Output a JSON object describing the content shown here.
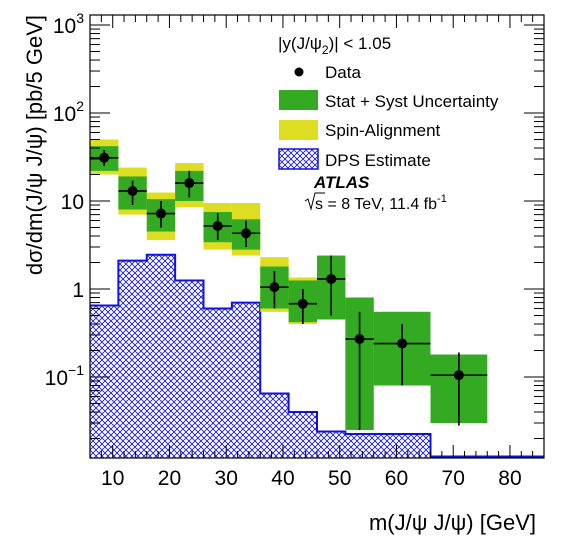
{
  "chart_data": {
    "type": "scatter",
    "xlabel": "m(J/ψ J/ψ) [GeV]",
    "ylabel": "dσ/dm(J/ψ J/ψ) [pb/5 GeV]",
    "xlim": [
      6,
      86
    ],
    "ylim": [
      0.012,
      1300
    ],
    "yscale": "log",
    "x_ticks": [
      10,
      20,
      30,
      40,
      50,
      60,
      70,
      80
    ],
    "y_ticks": [
      {
        "value": 0.1,
        "mantissa": "10",
        "exp": "−1"
      },
      {
        "value": 1,
        "mantissa": "1",
        "exp": ""
      },
      {
        "value": 10,
        "mantissa": "10",
        "exp": ""
      },
      {
        "value": 100,
        "mantissa": "10",
        "exp": "2"
      },
      {
        "value": 1000,
        "mantissa": "10",
        "exp": "3"
      }
    ],
    "cut_label": "|y(J/ψ",
    "cut_sub": "2",
    "cut_value": ")| < 1.05",
    "experiment": "ATLAS",
    "energy_label": "s = 8 TeV, 11.4 fb",
    "energy_sup": "-1",
    "legend": {
      "placement": "top-right",
      "data": "Data",
      "stat_syst": "Stat + Syst Uncertainty",
      "spin": "Spin-Alignment",
      "dps": "DPS Estimate"
    },
    "colors": {
      "stat_syst": "#33aa22",
      "spin": "#dddd22",
      "dps": "#1111dd",
      "data": "#000000"
    },
    "series": [
      {
        "name": "Data",
        "points": [
          {
            "x": 8.5,
            "y": 31,
            "xerr": 2.5,
            "ylo": 25,
            "yhi": 38,
            "stat_lo": 22,
            "stat_hi": 42,
            "spin_lo": 20,
            "spin_hi": 50
          },
          {
            "x": 13.5,
            "y": 13,
            "xerr": 2.5,
            "ylo": 9,
            "yhi": 17,
            "stat_lo": 8,
            "stat_hi": 19,
            "spin_lo": 7,
            "spin_hi": 24
          },
          {
            "x": 18.5,
            "y": 7.2,
            "xerr": 2.5,
            "ylo": 5,
            "yhi": 10,
            "stat_lo": 4.5,
            "stat_hi": 10.5,
            "spin_lo": 3.6,
            "spin_hi": 12.5
          },
          {
            "x": 23.5,
            "y": 16,
            "xerr": 2.5,
            "ylo": 11,
            "yhi": 22,
            "stat_lo": 10,
            "stat_hi": 22,
            "spin_lo": 8.5,
            "spin_hi": 27
          },
          {
            "x": 28.5,
            "y": 5.2,
            "xerr": 2.5,
            "ylo": 3.6,
            "yhi": 7.3,
            "stat_lo": 3.4,
            "stat_hi": 7.5,
            "spin_lo": 2.8,
            "spin_hi": 9.5
          },
          {
            "x": 33.5,
            "y": 4.3,
            "xerr": 2.5,
            "ylo": 3.0,
            "yhi": 6.0,
            "stat_lo": 2.8,
            "stat_hi": 6.2,
            "spin_lo": 2.4,
            "spin_hi": 9.5
          },
          {
            "x": 38.5,
            "y": 1.05,
            "xerr": 2.5,
            "ylo": 0.6,
            "yhi": 1.6,
            "stat_lo": 0.6,
            "stat_hi": 1.8,
            "spin_lo": 0.55,
            "spin_hi": 2.3
          },
          {
            "x": 43.5,
            "y": 0.68,
            "xerr": 2.5,
            "ylo": 0.4,
            "yhi": 1.0,
            "stat_lo": 0.42,
            "stat_hi": 1.25,
            "spin_lo": 0.4,
            "spin_hi": 1.35
          },
          {
            "x": 48.5,
            "y": 1.3,
            "xerr": 2.5,
            "ylo": 0.5,
            "yhi": 2.4,
            "stat_lo": 0.45,
            "stat_hi": 2.4,
            "spin_lo": 0.45,
            "spin_hi": 2.4
          },
          {
            "x": 53.5,
            "y": 0.27,
            "xerr": 2.5,
            "ylo": 0.025,
            "yhi": 0.55,
            "stat_lo": 0.025,
            "stat_hi": 0.8,
            "spin_lo": 0.025,
            "spin_hi": 0.8
          },
          {
            "x": 61,
            "y": 0.24,
            "xerr": 5,
            "ylo": 0.08,
            "yhi": 0.4,
            "stat_lo": 0.08,
            "stat_hi": 0.55,
            "spin_lo": 0.08,
            "spin_hi": 0.55
          },
          {
            "x": 71,
            "y": 0.105,
            "xerr": 5,
            "ylo": 0.028,
            "yhi": 0.19,
            "stat_lo": 0.03,
            "stat_hi": 0.18,
            "spin_lo": 0.03,
            "spin_hi": 0.18
          }
        ]
      },
      {
        "name": "DPS Estimate",
        "bins": [
          {
            "x0": 6,
            "x1": 11,
            "y": 0.65
          },
          {
            "x0": 11,
            "x1": 16,
            "y": 2.1
          },
          {
            "x0": 16,
            "x1": 21,
            "y": 2.45
          },
          {
            "x0": 21,
            "x1": 26,
            "y": 1.25
          },
          {
            "x0": 26,
            "x1": 31,
            "y": 0.6
          },
          {
            "x0": 31,
            "x1": 36,
            "y": 0.7
          },
          {
            "x0": 36,
            "x1": 41,
            "y": 0.065
          },
          {
            "x0": 41,
            "x1": 46,
            "y": 0.04
          },
          {
            "x0": 46,
            "x1": 51,
            "y": 0.024
          },
          {
            "x0": 51,
            "x1": 66,
            "y": 0.0225
          },
          {
            "x0": 66,
            "x1": 86,
            "y": 0.0125
          }
        ]
      }
    ]
  }
}
